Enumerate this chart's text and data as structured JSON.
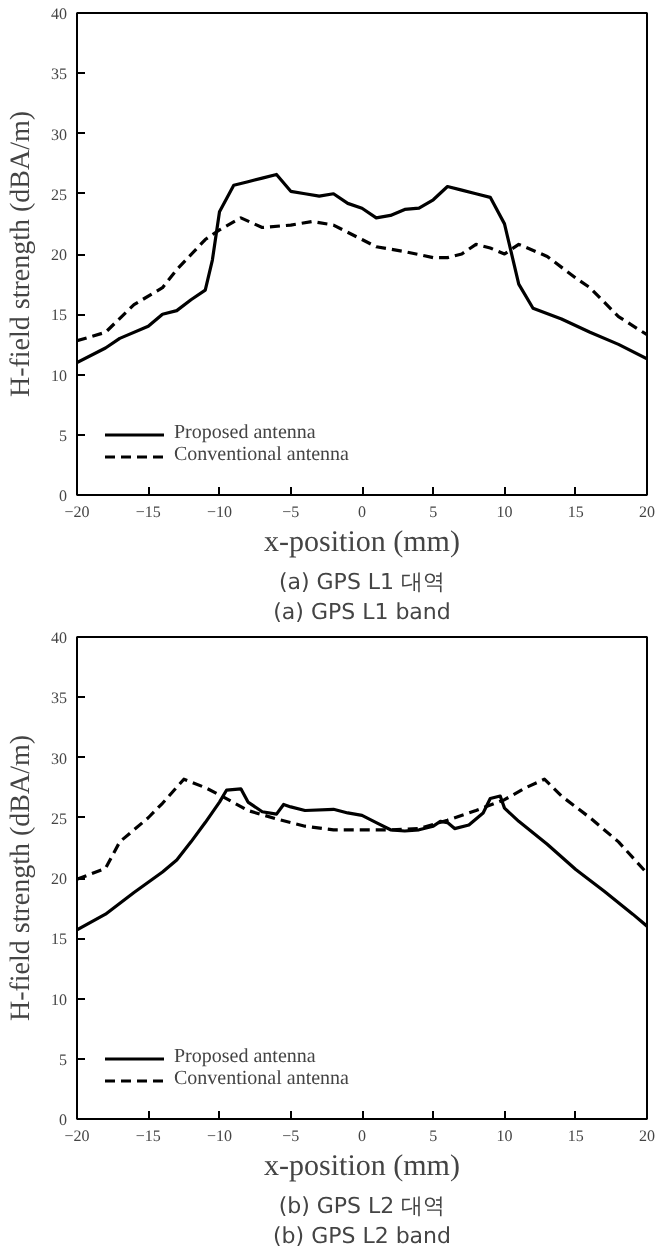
{
  "chart_data": [
    {
      "type": "line",
      "xlabel": "x-position (mm)",
      "ylabel": "H-field strength (dBA/m)",
      "xlim": [
        -20,
        20
      ],
      "ylim": [
        0,
        40
      ],
      "xticks": [
        -20,
        -15,
        -10,
        -5,
        0,
        5,
        10,
        15,
        20
      ],
      "yticks": [
        0,
        5,
        10,
        15,
        20,
        25,
        30,
        35,
        40
      ],
      "grid": false,
      "legend": "bottom left",
      "annotations": [
        "(a) GPS L1 대역",
        "(a) GPS L1 band"
      ],
      "series": [
        {
          "name": "Proposed antenna",
          "color": "#000000",
          "line_style": "solid",
          "x": [
            -20,
            -18,
            -17,
            -15,
            -14,
            -13,
            -12,
            -11,
            -10.5,
            -10,
            -9,
            -8,
            -7,
            -6,
            -5,
            -4,
            -3,
            -2,
            -1,
            0,
            1,
            2,
            3,
            4,
            5,
            6,
            7,
            8,
            9,
            10,
            11,
            12,
            14,
            16,
            18,
            20
          ],
          "values": [
            11,
            12.2,
            13,
            14,
            15,
            15.3,
            16.2,
            17,
            19.5,
            23.5,
            25.7,
            26,
            26.3,
            26.6,
            25.2,
            25,
            24.8,
            25,
            24.2,
            23.8,
            23,
            23.2,
            23.7,
            23.8,
            24.5,
            25.6,
            25.3,
            25,
            24.7,
            22.5,
            17.5,
            15.5,
            14.6,
            13.5,
            12.5,
            11.3
          ]
        },
        {
          "name": "Conventional antenna",
          "color": "#000000",
          "line_style": "dashed",
          "x": [
            -20,
            -18,
            -16,
            -14,
            -13,
            -11,
            -10,
            -8.5,
            -7,
            -5,
            -3.5,
            -2,
            0,
            1,
            3,
            5,
            6,
            7,
            8,
            9,
            10,
            11,
            13,
            15,
            16,
            18,
            20
          ],
          "values": [
            12.8,
            13.5,
            15.8,
            17.2,
            18.7,
            21.2,
            22,
            23,
            22.2,
            22.4,
            22.7,
            22.4,
            21.2,
            20.6,
            20.2,
            19.7,
            19.7,
            20,
            20.8,
            20.5,
            20,
            20.8,
            19.8,
            18,
            17.2,
            14.8,
            13.3
          ]
        }
      ]
    },
    {
      "type": "line",
      "xlabel": "x-position (mm)",
      "ylabel": "H-field strength (dBA/m)",
      "xlim": [
        -20,
        20
      ],
      "ylim": [
        0,
        40
      ],
      "xticks": [
        -20,
        -15,
        -10,
        -5,
        0,
        5,
        10,
        15,
        20
      ],
      "yticks": [
        0,
        5,
        10,
        15,
        20,
        25,
        30,
        35,
        40
      ],
      "grid": false,
      "legend": "bottom left",
      "annotations": [
        "(b) GPS L2 대역",
        "(b) GPS L2 band"
      ],
      "series": [
        {
          "name": "Proposed antenna",
          "color": "#000000",
          "line_style": "solid",
          "x": [
            -20,
            -18,
            -16,
            -14,
            -13,
            -12,
            -11,
            -10,
            -9.5,
            -8.5,
            -8,
            -7,
            -6,
            -5.5,
            -5,
            -4,
            -2,
            -1,
            0,
            1,
            2,
            3,
            4,
            5,
            5.5,
            6,
            6.5,
            7.5,
            8.5,
            9,
            9.7,
            10,
            11,
            13,
            15,
            17,
            19,
            20
          ],
          "values": [
            15.7,
            17,
            18.8,
            20.5,
            21.5,
            23,
            24.6,
            26.3,
            27.3,
            27.4,
            26.3,
            25.5,
            25.3,
            26.1,
            25.9,
            25.6,
            25.7,
            25.4,
            25.2,
            24.6,
            24,
            23.9,
            24,
            24.3,
            24.7,
            24.6,
            24.1,
            24.4,
            25.4,
            26.6,
            26.8,
            25.8,
            24.7,
            22.8,
            20.7,
            18.9,
            17,
            16
          ]
        },
        {
          "name": "Conventional antenna",
          "color": "#000000",
          "line_style": "dashed",
          "x": [
            -20,
            -18,
            -17,
            -15,
            -14,
            -12.5,
            -11,
            -10,
            -8,
            -6,
            -4,
            -2,
            0,
            2,
            4,
            6,
            8,
            10,
            11.5,
            12.8,
            14,
            16,
            18,
            20
          ],
          "values": [
            19.9,
            20.8,
            23,
            25,
            26.2,
            28.2,
            27.5,
            26.9,
            25.6,
            24.9,
            24.3,
            24,
            24,
            24,
            24.1,
            24.8,
            25.6,
            26.5,
            27.5,
            28.2,
            26.8,
            25,
            23,
            20.4
          ]
        }
      ]
    }
  ]
}
